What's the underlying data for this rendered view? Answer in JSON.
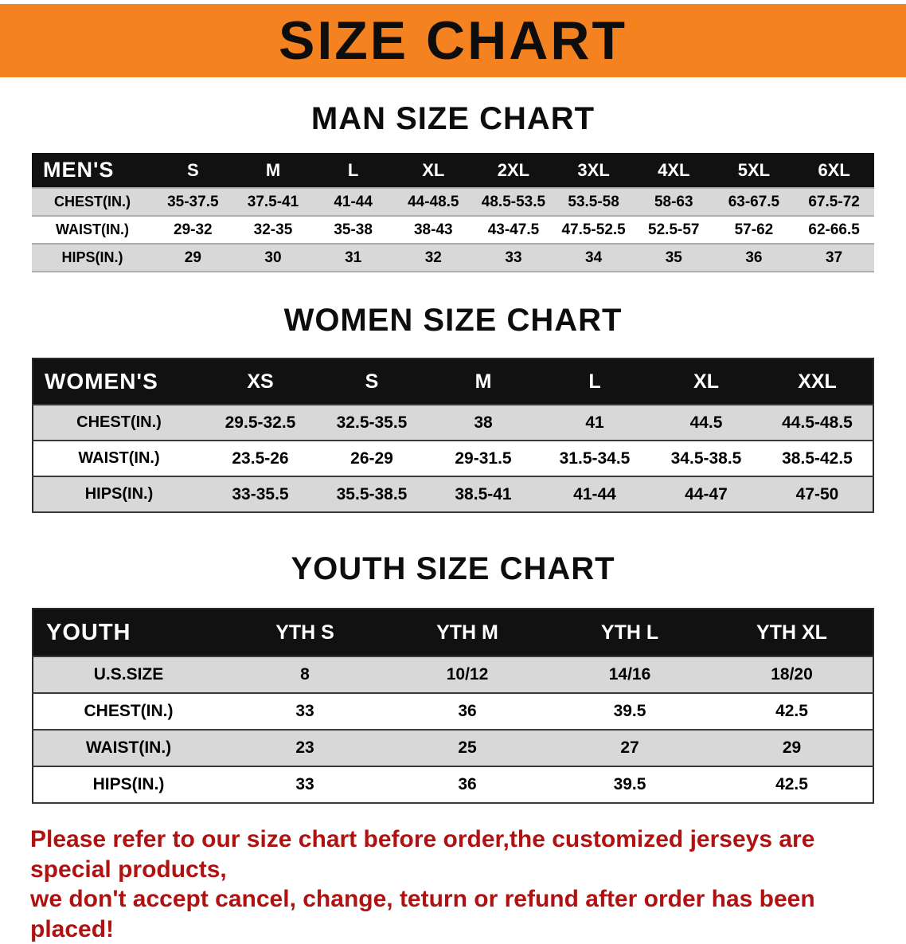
{
  "banner": {
    "title": "SIZE CHART",
    "bg_color": "#f58220",
    "text_color": "#0d0d0d"
  },
  "sections": {
    "men": {
      "heading": "MAN SIZE CHART",
      "table": {
        "header_label": "MEN'S",
        "columns": [
          "S",
          "M",
          "L",
          "XL",
          "2XL",
          "3XL",
          "4XL",
          "5XL",
          "6XL"
        ],
        "rows": [
          {
            "label": "CHEST(IN.)",
            "values": [
              "35-37.5",
              "37.5-41",
              "41-44",
              "44-48.5",
              "48.5-53.5",
              "53.5-58",
              "58-63",
              "63-67.5",
              "67.5-72"
            ]
          },
          {
            "label": "WAIST(IN.)",
            "values": [
              "29-32",
              "32-35",
              "35-38",
              "38-43",
              "43-47.5",
              "47.5-52.5",
              "52.5-57",
              "57-62",
              "62-66.5"
            ]
          },
          {
            "label": "HIPS(IN.)",
            "values": [
              "29",
              "30",
              "31",
              "32",
              "33",
              "34",
              "35",
              "36",
              "37"
            ]
          }
        ]
      }
    },
    "women": {
      "heading": "WOMEN SIZE CHART",
      "table": {
        "header_label": "WOMEN'S",
        "columns": [
          "XS",
          "S",
          "M",
          "L",
          "XL",
          "XXL"
        ],
        "rows": [
          {
            "label": "CHEST(IN.)",
            "values": [
              "29.5-32.5",
              "32.5-35.5",
              "38",
              "41",
              "44.5",
              "44.5-48.5"
            ]
          },
          {
            "label": "WAIST(IN.)",
            "values": [
              "23.5-26",
              "26-29",
              "29-31.5",
              "31.5-34.5",
              "34.5-38.5",
              "38.5-42.5"
            ]
          },
          {
            "label": "HIPS(IN.)",
            "values": [
              "33-35.5",
              "35.5-38.5",
              "38.5-41",
              "41-44",
              "44-47",
              "47-50"
            ]
          }
        ]
      }
    },
    "youth": {
      "heading": "YOUTH SIZE CHART",
      "table": {
        "header_label": "YOUTH",
        "columns": [
          "YTH S",
          "YTH M",
          "YTH L",
          "YTH XL"
        ],
        "rows": [
          {
            "label": "U.S.SIZE",
            "values": [
              "8",
              "10/12",
              "14/16",
              "18/20"
            ]
          },
          {
            "label": "CHEST(IN.)",
            "values": [
              "33",
              "36",
              "39.5",
              "42.5"
            ]
          },
          {
            "label": "WAIST(IN.)",
            "values": [
              "23",
              "25",
              "27",
              "29"
            ]
          },
          {
            "label": "HIPS(IN.)",
            "values": [
              "33",
              "36",
              "39.5",
              "42.5"
            ]
          }
        ]
      }
    }
  },
  "footer": {
    "line1": "Please refer to our size chart before order,the customized jerseys are special products,",
    "line2": "we don't accept cancel, change, teturn or refund after order has been placed!",
    "text_color": "#b01212"
  },
  "chart_data": [
    {
      "type": "table",
      "title": "MAN SIZE CHART",
      "columns": [
        "MEN'S",
        "S",
        "M",
        "L",
        "XL",
        "2XL",
        "3XL",
        "4XL",
        "5XL",
        "6XL"
      ],
      "rows": [
        [
          "CHEST(IN.)",
          "35-37.5",
          "37.5-41",
          "41-44",
          "44-48.5",
          "48.5-53.5",
          "53.5-58",
          "58-63",
          "63-67.5",
          "67.5-72"
        ],
        [
          "WAIST(IN.)",
          "29-32",
          "32-35",
          "35-38",
          "38-43",
          "43-47.5",
          "47.5-52.5",
          "52.5-57",
          "57-62",
          "62-66.5"
        ],
        [
          "HIPS(IN.)",
          "29",
          "30",
          "31",
          "32",
          "33",
          "34",
          "35",
          "36",
          "37"
        ]
      ]
    },
    {
      "type": "table",
      "title": "WOMEN SIZE CHART",
      "columns": [
        "WOMEN'S",
        "XS",
        "S",
        "M",
        "L",
        "XL",
        "XXL"
      ],
      "rows": [
        [
          "CHEST(IN.)",
          "29.5-32.5",
          "32.5-35.5",
          "38",
          "41",
          "44.5",
          "44.5-48.5"
        ],
        [
          "WAIST(IN.)",
          "23.5-26",
          "26-29",
          "29-31.5",
          "31.5-34.5",
          "34.5-38.5",
          "38.5-42.5"
        ],
        [
          "HIPS(IN.)",
          "33-35.5",
          "35.5-38.5",
          "38.5-41",
          "41-44",
          "44-47",
          "47-50"
        ]
      ]
    },
    {
      "type": "table",
      "title": "YOUTH SIZE CHART",
      "columns": [
        "YOUTH",
        "YTH S",
        "YTH M",
        "YTH L",
        "YTH XL"
      ],
      "rows": [
        [
          "U.S.SIZE",
          "8",
          "10/12",
          "14/16",
          "18/20"
        ],
        [
          "CHEST(IN.)",
          "33",
          "36",
          "39.5",
          "42.5"
        ],
        [
          "WAIST(IN.)",
          "23",
          "25",
          "27",
          "29"
        ],
        [
          "HIPS(IN.)",
          "33",
          "36",
          "39.5",
          "42.5"
        ]
      ]
    }
  ]
}
